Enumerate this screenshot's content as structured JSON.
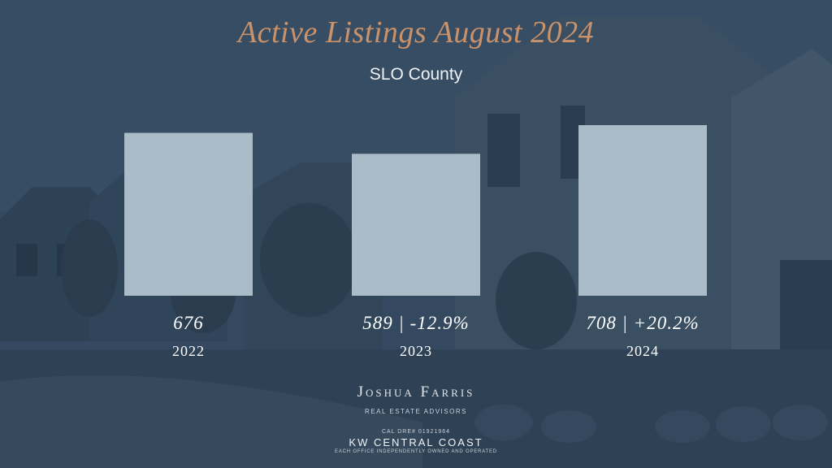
{
  "colors": {
    "background": "#2f4358",
    "title": "#c9926a",
    "bar": "#a9bcc7",
    "text": "#ffffff"
  },
  "chart_data": {
    "type": "bar",
    "title": "Active Listings August 2024",
    "subtitle": "SLO County",
    "categories": [
      "2022",
      "2023",
      "2024"
    ],
    "values": [
      676,
      589,
      708
    ],
    "value_labels": [
      "676",
      "589 | -12.9%",
      "708 | +20.2%"
    ],
    "xlabel": "",
    "ylabel": "",
    "grid": false,
    "legend": "none"
  },
  "branding": {
    "name": "Joshua Farris",
    "tagline": "REAL ESTATE ADVISORS",
    "license": "CAL DRE# 01921964",
    "office": "KW CENTRAL COAST",
    "note": "EACH OFFICE INDEPENDENTLY OWNED AND OPERATED"
  }
}
